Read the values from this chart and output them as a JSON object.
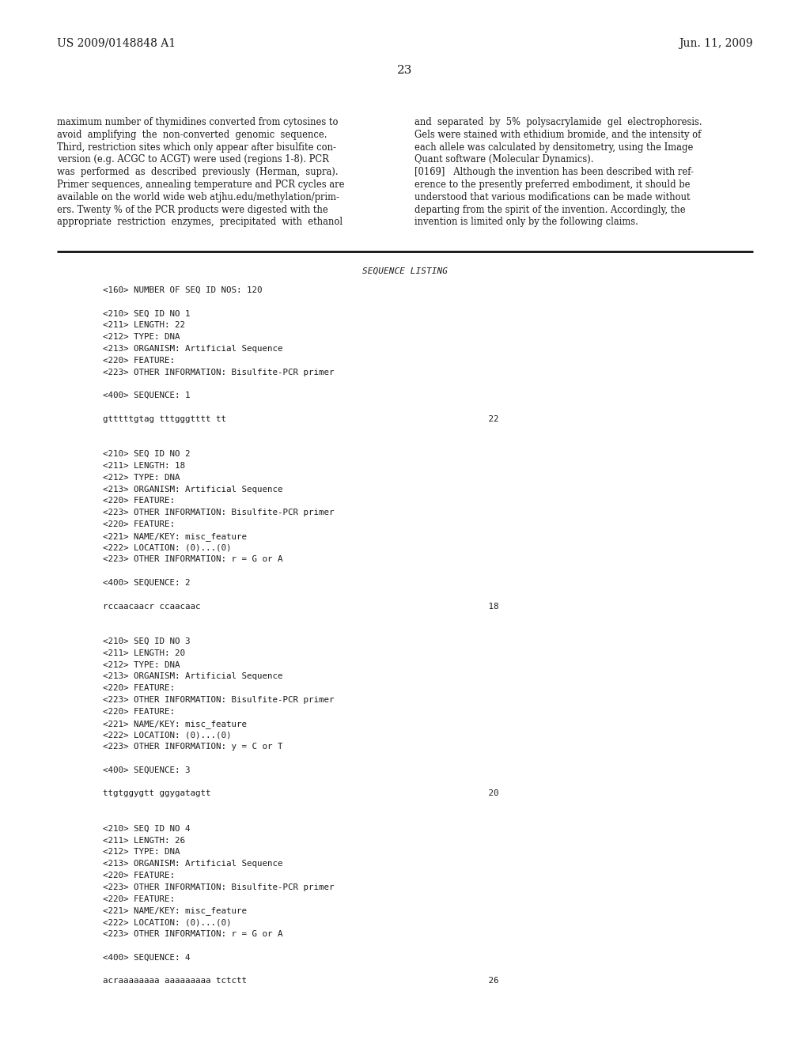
{
  "background_color": "#ffffff",
  "header_left": "US 2009/0148848 A1",
  "header_right": "Jun. 11, 2009",
  "page_number": "23",
  "body_left_col": [
    "maximum number of thymidines converted from cytosines to",
    "avoid  amplifying  the  non-converted  genomic  sequence.",
    "Third, restriction sites which only appear after bisulfite con-",
    "version (e.g. ACGC to ACGT) were used (regions 1-8). PCR",
    "was  performed  as  described  previously  (Herman,  supra).",
    "Primer sequences, annealing temperature and PCR cycles are",
    "available on the world wide web atjhu.edu/methylation/prim-",
    "ers. Twenty % of the PCR products were digested with the",
    "appropriate  restriction  enzymes,  precipitated  with  ethanol"
  ],
  "body_right_col": [
    "and  separated  by  5%  polysacrylamide  gel  electrophoresis.",
    "Gels were stained with ethidium bromide, and the intensity of",
    "each allele was calculated by densitometry, using the Image",
    "Quant software (Molecular Dynamics).",
    "[0169]   Although the invention has been described with ref-",
    "erence to the presently preferred embodiment, it should be",
    "understood that various modifications can be made without",
    "departing from the spirit of the invention. Accordingly, the",
    "invention is limited only by the following claims."
  ],
  "divider_label": "SEQUENCE LISTING",
  "sequence_lines": [
    "<160> NUMBER OF SEQ ID NOS: 120",
    "",
    "<210> SEQ ID NO 1",
    "<211> LENGTH: 22",
    "<212> TYPE: DNA",
    "<213> ORGANISM: Artificial Sequence",
    "<220> FEATURE:",
    "<223> OTHER INFORMATION: Bisulfite-PCR primer",
    "",
    "<400> SEQUENCE: 1",
    "",
    "gtttttgtag tttgggtttt tt                                                   22",
    "",
    "",
    "<210> SEQ ID NO 2",
    "<211> LENGTH: 18",
    "<212> TYPE: DNA",
    "<213> ORGANISM: Artificial Sequence",
    "<220> FEATURE:",
    "<223> OTHER INFORMATION: Bisulfite-PCR primer",
    "<220> FEATURE:",
    "<221> NAME/KEY: misc_feature",
    "<222> LOCATION: (0)...(0)",
    "<223> OTHER INFORMATION: r = G or A",
    "",
    "<400> SEQUENCE: 2",
    "",
    "rccaacaacr ccaacaac                                                        18",
    "",
    "",
    "<210> SEQ ID NO 3",
    "<211> LENGTH: 20",
    "<212> TYPE: DNA",
    "<213> ORGANISM: Artificial Sequence",
    "<220> FEATURE:",
    "<223> OTHER INFORMATION: Bisulfite-PCR primer",
    "<220> FEATURE:",
    "<221> NAME/KEY: misc_feature",
    "<222> LOCATION: (0)...(0)",
    "<223> OTHER INFORMATION: y = C or T",
    "",
    "<400> SEQUENCE: 3",
    "",
    "ttgtggygtt ggygatagtt                                                      20",
    "",
    "",
    "<210> SEQ ID NO 4",
    "<211> LENGTH: 26",
    "<212> TYPE: DNA",
    "<213> ORGANISM: Artificial Sequence",
    "<220> FEATURE:",
    "<223> OTHER INFORMATION: Bisulfite-PCR primer",
    "<220> FEATURE:",
    "<221> NAME/KEY: misc_feature",
    "<222> LOCATION: (0)...(0)",
    "<223> OTHER INFORMATION: r = G or A",
    "",
    "<400> SEQUENCE: 4",
    "",
    "acraaaaaaaa aaaaaaaaa tctctt                                               26"
  ]
}
